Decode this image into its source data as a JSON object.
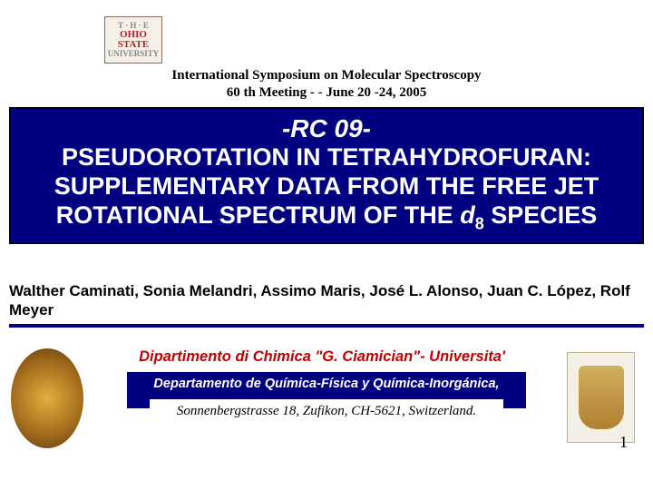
{
  "logo": {
    "line1": "T · H · E",
    "line2": "OHIO",
    "line3": "STATE",
    "line4": "UNIVERSITY"
  },
  "header": {
    "line1": "International Symposium on Molecular Spectroscopy",
    "line2": "60 th Meeting - - June 20 -24, 2005"
  },
  "title": {
    "code": "-RC 09-",
    "main_html": "PSEUDOROTATION IN TETRAHYDROFURAN: SUPPLEMENTARY DATA FROM THE FREE JET ROTATIONAL SPECTRUM OF THE d8 SPECIES",
    "main_plain_a": "PSEUDOROTATION IN TETRAHYDROFURAN: SUPPLEMENTARY DATA FROM THE FREE JET ROTATIONAL SPECTRUM OF THE ",
    "main_em": "d",
    "main_sub": "8",
    "main_plain_b": " SPECIES"
  },
  "authors": "Walther Caminati, Sonia Melandri, Assimo Maris, José L. Alonso, Juan C. López, Rolf Meyer",
  "affiliations": {
    "dept1": "Dipartimento di Chimica \"G. Ciamician\"- Universita'",
    "dept2": "Departamento de Química-Física y Química-Inorgánica,",
    "dept3": "Sonnenbergstrasse 18, Zufikon, CH-5621, Switzerland",
    "dot": "."
  },
  "slide_number": "1",
  "colors": {
    "navy": "#000080",
    "red_text": "#c00000",
    "white": "#ffffff",
    "black": "#000000"
  }
}
